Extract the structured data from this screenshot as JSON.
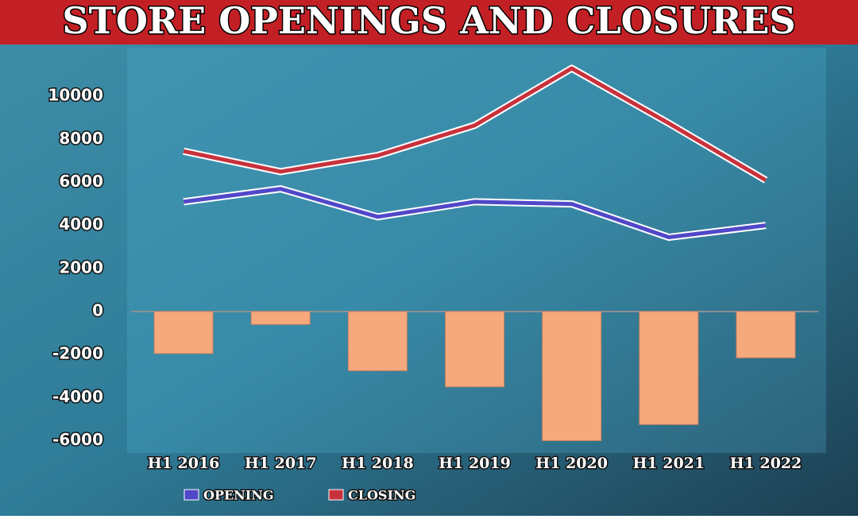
{
  "chart_data": {
    "type": "combo",
    "title": "STORE OPENINGS AND CLOSURES",
    "categories": [
      "H1 2016",
      "H1 2017",
      "H1 2018",
      "H1 2019",
      "H1 2020",
      "H1 2021",
      "H1 2022"
    ],
    "bar_values": [
      -1950,
      -600,
      -2750,
      -3500,
      -6000,
      -5250,
      -2150
    ],
    "bar_color": "#f6a97c",
    "series": [
      {
        "name": "OPENING",
        "color": "#5048c8",
        "values": [
          5100,
          5700,
          4400,
          5100,
          5000,
          3450,
          4000
        ]
      },
      {
        "name": "CLOSING",
        "color": "#c8323c",
        "values": [
          7450,
          6500,
          7250,
          8650,
          11300,
          8750,
          6100
        ]
      }
    ],
    "ylim": [
      -6500,
      12000
    ],
    "yticks": [
      -6000,
      -4000,
      -2000,
      0,
      2000,
      4000,
      6000,
      8000,
      10000
    ]
  }
}
